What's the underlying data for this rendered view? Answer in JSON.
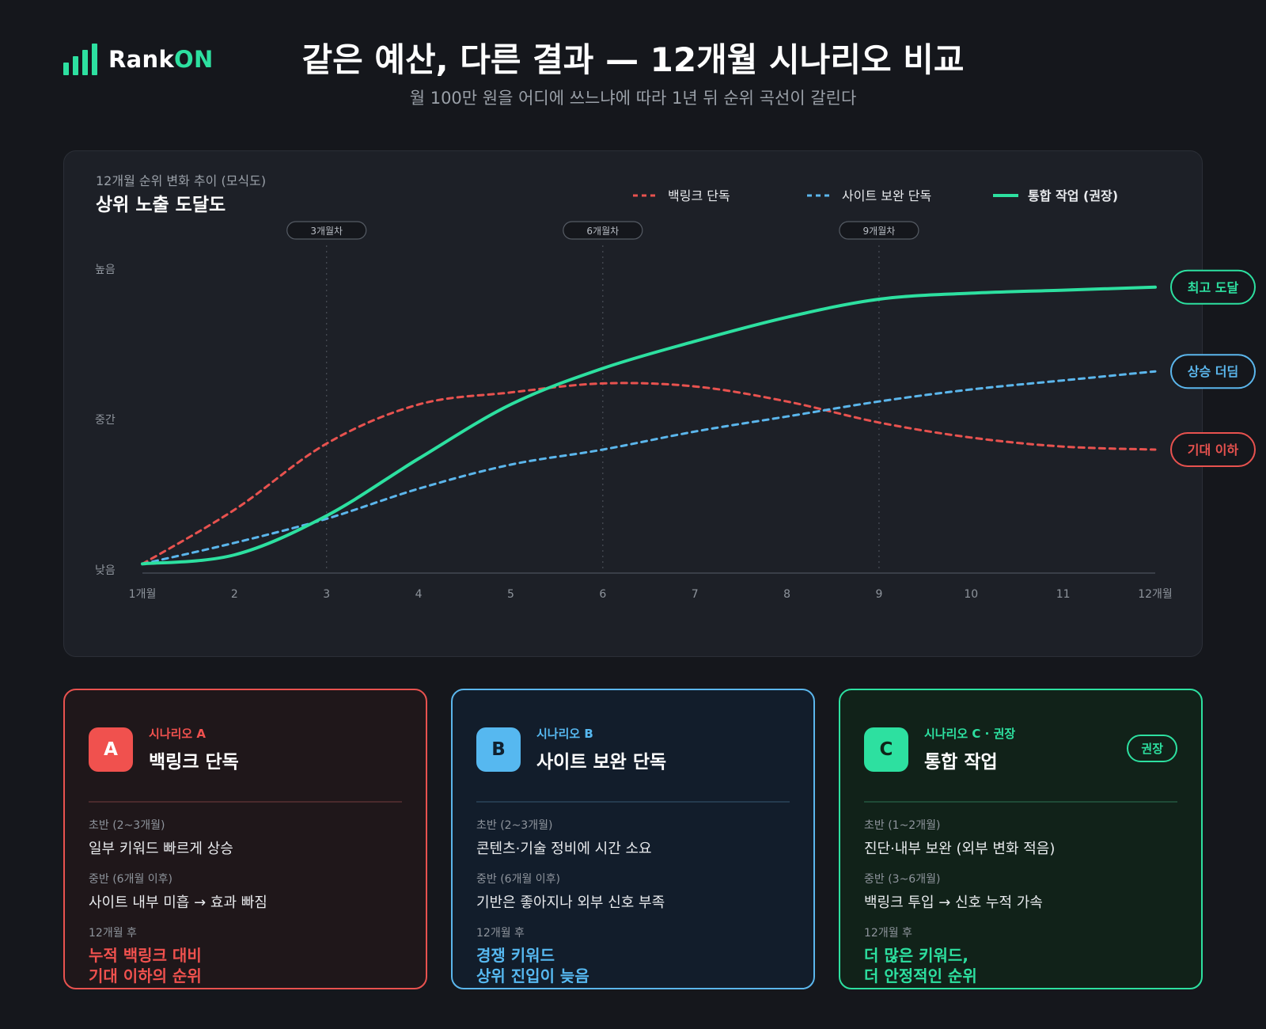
{
  "brand": {
    "name_main": "Rank",
    "name_accent": "ON"
  },
  "header": {
    "title": "같은 예산, 다른 결과 — 12개월 시나리오 비교",
    "subtitle": "월 100만 원을 어디에 쓰느냐에 따라 1년 뒤 순위 곡선이 갈린다"
  },
  "colors": {
    "backlink": "#e8524f",
    "site": "#5bb6ec",
    "integrated": "#2de0a0",
    "background": "#15171c"
  },
  "chart_data": {
    "type": "line",
    "caption": "12개월 순위 변화 추이 (모식도)",
    "title": "상위 노출 도달도",
    "x": [
      1,
      2,
      3,
      4,
      5,
      6,
      7,
      8,
      9,
      10,
      11,
      12
    ],
    "x_tick_labels": [
      "1개월",
      "2",
      "3",
      "4",
      "5",
      "6",
      "7",
      "8",
      "9",
      "10",
      "11",
      "12개월"
    ],
    "y_tick_labels": [
      "낮음",
      "중간",
      "높음"
    ],
    "ylim": [
      0,
      100
    ],
    "grid": "vertical dotted lines at months 3, 6, 9",
    "milestones": [
      {
        "month": 3,
        "label": "3개월차"
      },
      {
        "month": 6,
        "label": "6개월차"
      },
      {
        "month": 9,
        "label": "9개월차"
      }
    ],
    "legend_position": "top-right",
    "series": [
      {
        "name": "백링크 단독",
        "style": "dashed",
        "color": "#e8524f",
        "values": [
          2,
          20,
          42,
          55,
          59,
          62,
          61,
          56,
          49,
          44,
          41,
          40
        ],
        "end_label": "기대 이하"
      },
      {
        "name": "사이트 보완 단독",
        "style": "dashed",
        "color": "#5bb6ec",
        "values": [
          2,
          9,
          17,
          27,
          35,
          40,
          46,
          51,
          56,
          60,
          63,
          66
        ],
        "end_label": "상승 더딤"
      },
      {
        "name": "통합 작업 (권장)",
        "style": "solid",
        "color": "#2de0a0",
        "values": [
          2,
          5,
          18,
          37,
          55,
          67,
          76,
          84,
          90,
          92,
          93,
          94
        ],
        "end_label": "최고 도달"
      }
    ]
  },
  "cards": [
    {
      "letter": "A",
      "kicker": "시나리오 A",
      "name": "백링크 단독",
      "early_label": "초반 (2~3개월)",
      "early_text": "일부 키워드 빠르게 상승",
      "mid_label": "중반 (6개월 이후)",
      "mid_text": "사이트 내부 미흡 → 효과 빠짐",
      "result_label": "12개월 후",
      "result_line1": "누적 백링크 대비",
      "result_line2": "기대 이하의 순위"
    },
    {
      "letter": "B",
      "kicker": "시나리오 B",
      "name": "사이트 보완 단독",
      "early_label": "초반 (2~3개월)",
      "early_text": "콘텐츠·기술 정비에 시간 소요",
      "mid_label": "중반 (6개월 이후)",
      "mid_text": "기반은 좋아지나 외부 신호 부족",
      "result_label": "12개월 후",
      "result_line1": "경쟁 키워드",
      "result_line2": "상위 진입이 늦음"
    },
    {
      "letter": "C",
      "kicker": "시나리오 C · 권장",
      "name": "통합 작업",
      "pill": "권장",
      "early_label": "초반 (1~2개월)",
      "early_text": "진단·내부 보완 (외부 변화 적음)",
      "mid_label": "중반 (3~6개월)",
      "mid_text": "백링크 투입 → 신호 누적 가속",
      "result_label": "12개월 후",
      "result_line1": "더 많은 키워드,",
      "result_line2": "더 안정적인 순위"
    }
  ]
}
